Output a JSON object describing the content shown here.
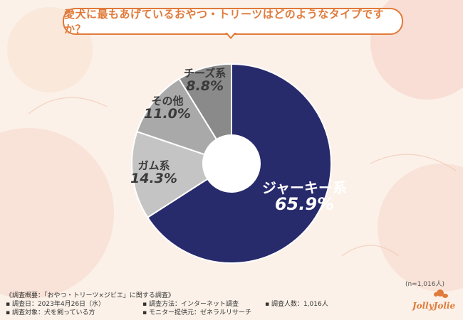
{
  "title": "愛犬に最もあげているおやつ・トリーツはどのようなタイプですか？",
  "colors": {
    "accent": "#e07a3a",
    "slice_jerky": "#272a6b",
    "slice_gum": "#c4c4c4",
    "slice_other": "#a9a9a9",
    "slice_cheese": "#8a8a8a"
  },
  "chart_data": {
    "type": "pie",
    "variant": "donut",
    "title": "愛犬に最もあげているおやつ・トリーツはどのようなタイプですか？",
    "slices": [
      {
        "label": "ジャーキー系",
        "value": 65.9,
        "display": "65.9%"
      },
      {
        "label": "ガム系",
        "value": 14.3,
        "display": "14.3%"
      },
      {
        "label": "その他",
        "value": 11.0,
        "display": "11.0%"
      },
      {
        "label": "チーズ系",
        "value": 8.8,
        "display": "8.8%"
      }
    ],
    "sample": "(n=1,016人)"
  },
  "footer": {
    "overview": "《調査概要：「おやつ・トリーツ×ジビエ」に関する調査》",
    "date": "▪ 調査日：2023年4月26日（水）",
    "method": "▪ 調査方法：インターネット調査",
    "count": "▪ 調査人数：1,016人",
    "target": "▪ 調査対象：犬を飼っている方",
    "provider": "▪ モニター提供元：ゼネラルリサーチ"
  },
  "logo": {
    "text": "JollyJolie",
    "icon": "dog-icon"
  }
}
